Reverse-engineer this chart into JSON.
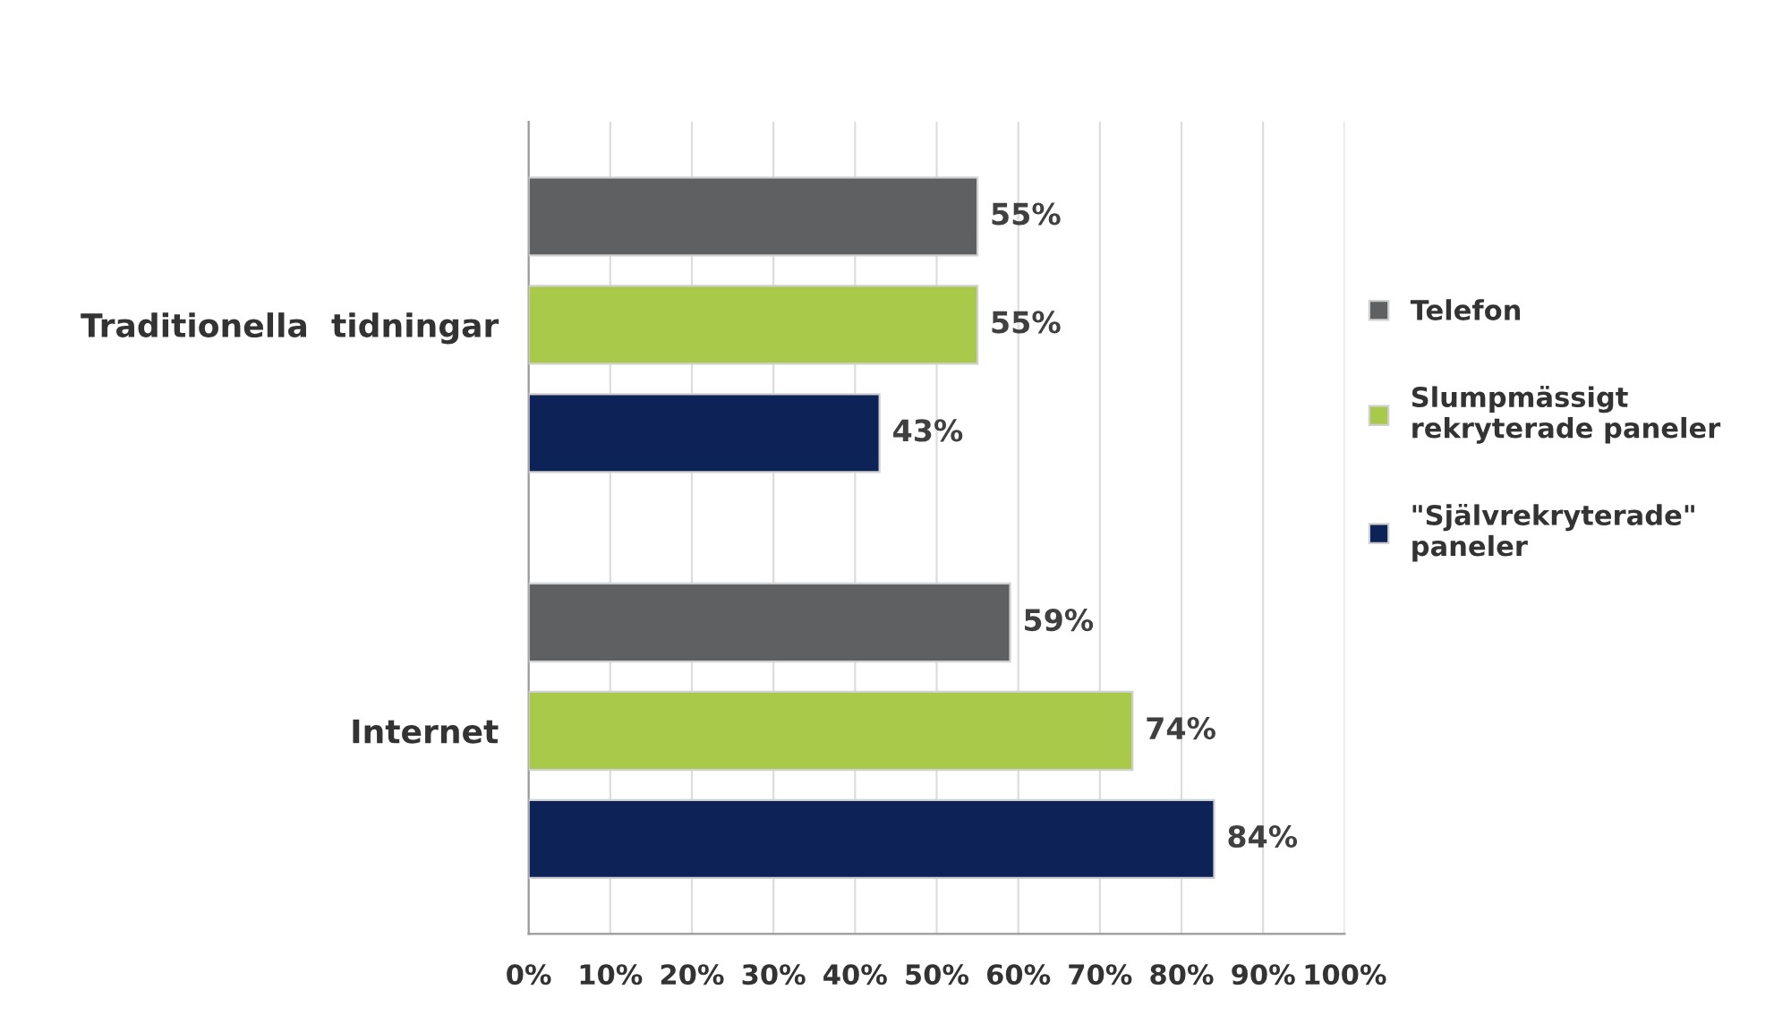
{
  "chart_data": {
    "type": "bar",
    "orientation": "horizontal",
    "categories": [
      "Traditionella  tidningar",
      "Internet"
    ],
    "series": [
      {
        "name": "Telefon",
        "color": "#5f6062",
        "values": [
          55,
          59
        ],
        "value_labels": [
          "55%",
          "59%"
        ]
      },
      {
        "name": "Slumpmässigt\nrekryterade paneler",
        "color": "#a8c94a",
        "values": [
          55,
          74
        ],
        "value_labels": [
          "55%",
          "74%"
        ]
      },
      {
        "name": "\"Självrekryterade\"\npaneler",
        "color": "#0d2257",
        "values": [
          43,
          84
        ],
        "value_labels": [
          "43%",
          "84%"
        ]
      }
    ],
    "xlim": [
      0,
      100
    ],
    "xticks": [
      {
        "value": 0,
        "label": "0%"
      },
      {
        "value": 10,
        "label": "10%"
      },
      {
        "value": 20,
        "label": "20%"
      },
      {
        "value": 30,
        "label": "30%"
      },
      {
        "value": 40,
        "label": "40%"
      },
      {
        "value": 50,
        "label": "50%"
      },
      {
        "value": 60,
        "label": "60%"
      },
      {
        "value": 70,
        "label": "70%"
      },
      {
        "value": 80,
        "label": "80%"
      },
      {
        "value": 90,
        "label": "90%"
      },
      {
        "value": 100,
        "label": "100%"
      }
    ],
    "grid": "x",
    "legend": "right"
  }
}
